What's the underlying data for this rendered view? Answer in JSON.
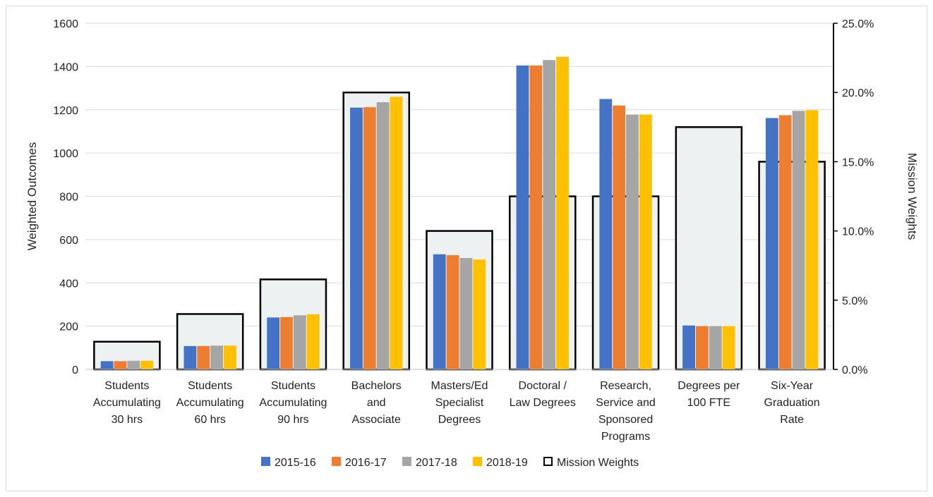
{
  "chart_data": {
    "type": "bar",
    "categories": [
      [
        "Students",
        "Accumulating",
        "30 hrs"
      ],
      [
        "Students",
        "Accumulating",
        "60 hrs"
      ],
      [
        "Students",
        "Accumulating",
        "90 hrs"
      ],
      [
        "Bachelors",
        "and",
        "Associate"
      ],
      [
        "Masters/Ed",
        "Specialist",
        "Degrees"
      ],
      [
        "Doctoral /",
        "Law Degrees"
      ],
      [
        "Research,",
        "Service and",
        "Sponsored",
        "Programs"
      ],
      [
        "Degrees per",
        "100 FTE"
      ],
      [
        "Six-Year",
        "Graduation",
        "Rate"
      ]
    ],
    "series": [
      {
        "name": "2015-16",
        "color": "#4472c4",
        "values": [
          38,
          108,
          240,
          1210,
          532,
          1405,
          1250,
          203,
          1162
        ]
      },
      {
        "name": "2016-17",
        "color": "#ed7d31",
        "values": [
          38,
          108,
          242,
          1212,
          528,
          1405,
          1220,
          200,
          1175
        ]
      },
      {
        "name": "2017-18",
        "color": "#a5a5a5",
        "values": [
          40,
          110,
          250,
          1235,
          515,
          1430,
          1178,
          200,
          1195
        ]
      },
      {
        "name": "2018-19",
        "color": "#ffc000",
        "values": [
          40,
          110,
          255,
          1260,
          508,
          1445,
          1178,
          200,
          1198
        ]
      }
    ],
    "mission_weights": {
      "name": "Mission Weights",
      "values": [
        0.02,
        0.04,
        0.065,
        0.2,
        0.1,
        0.125,
        0.125,
        0.175,
        0.15
      ]
    },
    "ylabel": "Weighted Outcomes",
    "y2label": "Mission Weights",
    "ylim": [
      0,
      1600
    ],
    "y2lim": [
      0,
      0.25
    ],
    "yticks": [
      "0",
      "200",
      "400",
      "600",
      "800",
      "1000",
      "1200",
      "1400",
      "1600"
    ],
    "y2ticks": [
      "0.0%",
      "5.0%",
      "10.0%",
      "15.0%",
      "20.0%",
      "25.0%"
    ],
    "grid": true,
    "legend_position": "bottom"
  }
}
